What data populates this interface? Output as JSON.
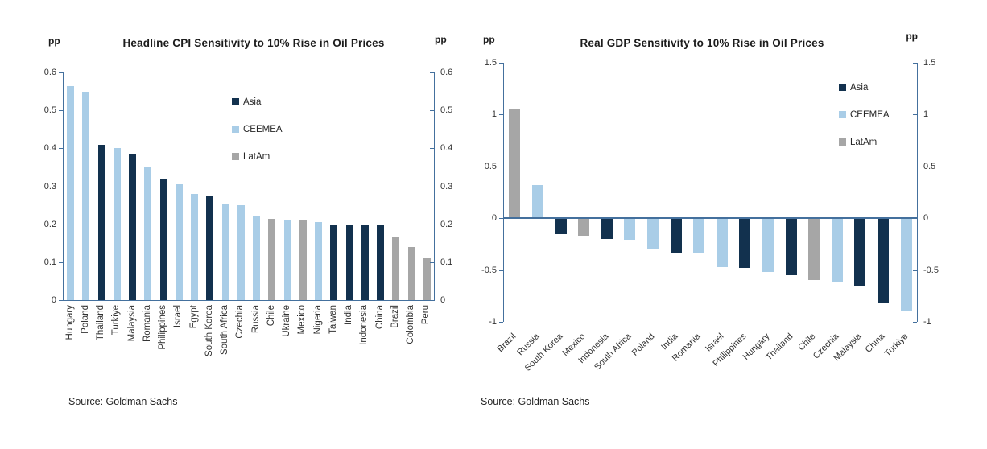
{
  "colors": {
    "Asia": "#12314e",
    "CEEMEA": "#a9cde7",
    "LatAm": "#a6a6a6",
    "axis": "#44709d",
    "text": "#262626",
    "tick_text": "#333333"
  },
  "chart_data": [
    {
      "type": "bar",
      "title": "Headline CPI Sensitivity to 10% Rise in Oil Prices",
      "unit_left": "pp",
      "unit_right": "pp",
      "xlabel": "",
      "ylabel": "pp",
      "ylim": [
        0,
        0.6
      ],
      "yticks": [
        "0.6",
        "0.5",
        "0.4",
        "0.3",
        "0.2",
        "0.1",
        "0"
      ],
      "grid": false,
      "legend": [
        "Asia",
        "CEEMEA",
        "LatAm"
      ],
      "legend_position": "inside-upper-center",
      "xlabel_rotation": 90,
      "source": "Source: Goldman Sachs",
      "categories": [
        "Hungary",
        "Poland",
        "Thailand",
        "Turkiye",
        "Malaysia",
        "Romania",
        "Philippines",
        "Israel",
        "Egypt",
        "South Korea",
        "South Africa",
        "Czechia",
        "Russia",
        "Chile",
        "Ukraine",
        "Mexico",
        "Nigeria",
        "Taiwan",
        "India",
        "Indonesia",
        "China",
        "Brazil",
        "Colombia",
        "Peru"
      ],
      "values": [
        0.565,
        0.55,
        0.41,
        0.4,
        0.385,
        0.35,
        0.32,
        0.305,
        0.28,
        0.275,
        0.255,
        0.25,
        0.22,
        0.215,
        0.212,
        0.21,
        0.205,
        0.2,
        0.2,
        0.2,
        0.2,
        0.165,
        0.14,
        0.11
      ],
      "regions": [
        "CEEMEA",
        "CEEMEA",
        "Asia",
        "CEEMEA",
        "Asia",
        "CEEMEA",
        "Asia",
        "CEEMEA",
        "CEEMEA",
        "Asia",
        "CEEMEA",
        "CEEMEA",
        "CEEMEA",
        "LatAm",
        "CEEMEA",
        "LatAm",
        "CEEMEA",
        "Asia",
        "Asia",
        "Asia",
        "Asia",
        "LatAm",
        "LatAm",
        "LatAm"
      ]
    },
    {
      "type": "bar",
      "title": "Real GDP Sensitivity to 10% Rise in Oil Prices",
      "unit_left": "pp",
      "unit_right": "pp",
      "xlabel": "",
      "ylabel": "pp",
      "ylim": [
        -1,
        1.5
      ],
      "yticks": [
        "1.5",
        "1",
        "0.5",
        "0",
        "-0.5",
        "-1"
      ],
      "grid": false,
      "legend": [
        "Asia",
        "CEEMEA",
        "LatAm"
      ],
      "legend_position": "inside-upper-right",
      "xlabel_rotation": 45,
      "source": "Source: Goldman Sachs",
      "categories": [
        "Brazil",
        "Russia",
        "South Korea",
        "Mexico",
        "Indonesia",
        "South Africa",
        "Poland",
        "India",
        "Romania",
        "Israel",
        "Philippines",
        "Hungary",
        "Thailand",
        "Chile",
        "Czechia",
        "Malaysia",
        "China",
        "Turkiye"
      ],
      "values": [
        1.05,
        0.32,
        -0.15,
        -0.17,
        -0.2,
        -0.21,
        -0.3,
        -0.33,
        -0.34,
        -0.47,
        -0.48,
        -0.52,
        -0.55,
        -0.6,
        -0.62,
        -0.65,
        -0.82,
        -0.9
      ],
      "regions": [
        "LatAm",
        "CEEMEA",
        "Asia",
        "LatAm",
        "Asia",
        "CEEMEA",
        "CEEMEA",
        "Asia",
        "CEEMEA",
        "CEEMEA",
        "Asia",
        "CEEMEA",
        "Asia",
        "LatAm",
        "CEEMEA",
        "Asia",
        "Asia",
        "CEEMEA"
      ]
    }
  ]
}
